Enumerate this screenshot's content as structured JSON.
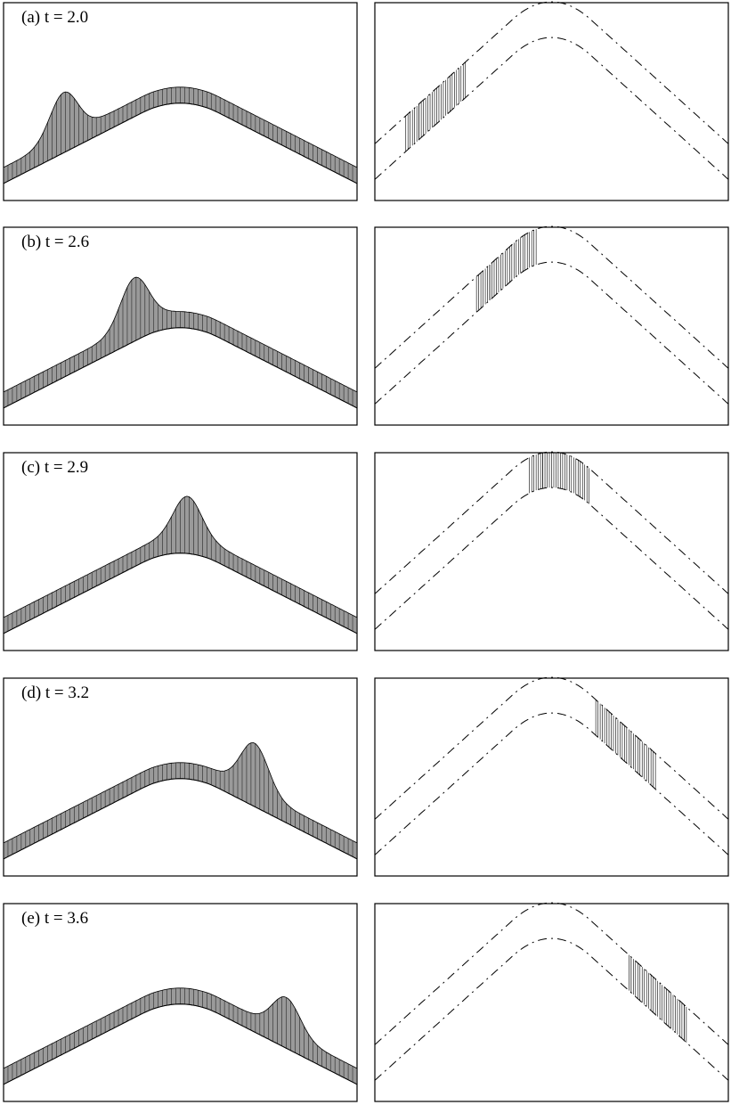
{
  "figure": {
    "panels": [
      {
        "id": "a",
        "label": "(a) t = 2.0",
        "t": 2.0,
        "wave_center": 0.17,
        "wave_height": 0.14
      },
      {
        "id": "b",
        "label": "(b) t = 2.6",
        "t": 2.6,
        "wave_center": 0.37,
        "wave_height": 0.15
      },
      {
        "id": "c",
        "label": "(c) t = 2.9",
        "t": 2.9,
        "wave_center": 0.52,
        "wave_height": 0.13
      },
      {
        "id": "d",
        "label": "(d) t = 3.2",
        "t": 3.2,
        "wave_center": 0.71,
        "wave_height": 0.15
      },
      {
        "id": "e",
        "label": "(e) t = 3.6",
        "t": 3.6,
        "wave_center": 0.8,
        "wave_height": 0.11
      }
    ]
  }
}
